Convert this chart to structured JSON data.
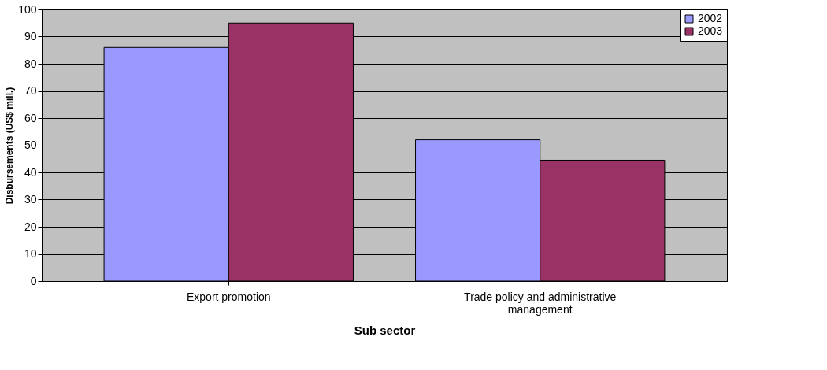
{
  "chart_data": {
    "type": "bar",
    "xlabel": "Sub sector",
    "ylabel": "Disbursements (US$ mill.)",
    "categories": [
      "Export promotion",
      "Trade policy and administrative management"
    ],
    "series": [
      {
        "name": "2002",
        "color": "#9999ff",
        "values": [
          86,
          52
        ]
      },
      {
        "name": "2003",
        "color": "#993366",
        "values": [
          95,
          44.5
        ]
      }
    ],
    "ylim": [
      0,
      100
    ],
    "yticks": [
      0,
      10,
      20,
      30,
      40,
      50,
      60,
      70,
      80,
      90,
      100
    ],
    "grid": "y",
    "legend": "top right"
  }
}
